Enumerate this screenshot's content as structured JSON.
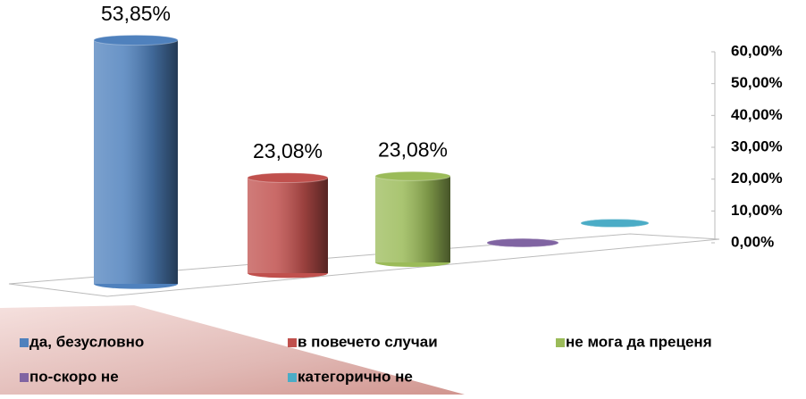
{
  "chart_data": {
    "type": "bar",
    "series": [
      {
        "name": "да, безусловно",
        "color": "#4f81bd",
        "values": [
          53.85
        ],
        "value_labels": [
          "53,85%"
        ]
      },
      {
        "name": "в повечето случаи",
        "color": "#c0504d",
        "values": [
          23.08
        ],
        "value_labels": [
          "23,08%"
        ]
      },
      {
        "name": "не мога да преценя",
        "color": "#9bbb59",
        "values": [
          23.08
        ],
        "value_labels": [
          "23,08%"
        ]
      },
      {
        "name": "по-скоро не",
        "color": "#8064a2",
        "values": [
          0
        ]
      },
      {
        "name": "категорично  не",
        "color": "#4bacc6",
        "values": [
          0
        ]
      }
    ],
    "ylim": [
      0,
      60
    ],
    "yticks": [
      {
        "value": 0,
        "label": "0,00%"
      },
      {
        "value": 10,
        "label": "10,00%"
      },
      {
        "value": 20,
        "label": "20,00%"
      },
      {
        "value": 30,
        "label": "30,00%"
      },
      {
        "value": 40,
        "label": "40,00%"
      },
      {
        "value": 50,
        "label": "50,00%"
      },
      {
        "value": 60,
        "label": "60,00%"
      }
    ]
  }
}
